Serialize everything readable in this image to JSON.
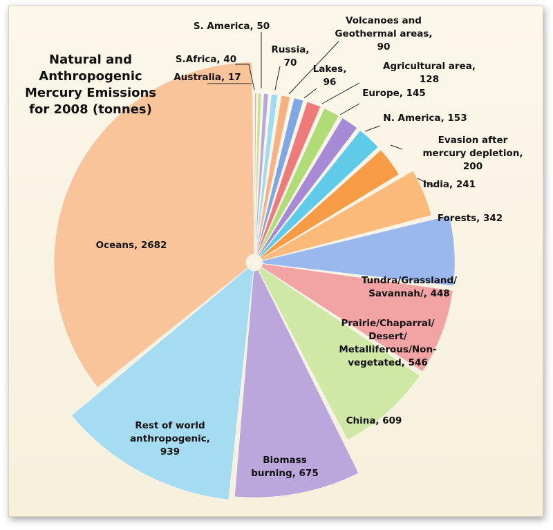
{
  "chart_data": {
    "type": "pie",
    "title": [
      "Natural and",
      "Anthropogenic",
      "Mercury Emissions",
      "for 2008 (tonnes)"
    ],
    "slices": [
      {
        "label": [
          "Australia, 17"
        ],
        "value": 17,
        "color": "#f0a8a0"
      },
      {
        "label": [
          "S.Africa, 40"
        ],
        "value": 40,
        "color": "#c8e49a"
      },
      {
        "label": [
          "S. America, 50"
        ],
        "value": 50,
        "color": "#b9a6dc"
      },
      {
        "label": [
          "Russia,",
          "70"
        ],
        "value": 70,
        "color": "#9edcf0"
      },
      {
        "label": [
          "Volcanoes and",
          "Geothermal areas,",
          "90"
        ],
        "value": 90,
        "color": "#f7b080"
      },
      {
        "label": [
          "Lakes,",
          "96"
        ],
        "value": 96,
        "color": "#7fa7e6"
      },
      {
        "label": [
          "Agricultural area,",
          "128"
        ],
        "value": 128,
        "color": "#ee7a7a"
      },
      {
        "label": [
          "Europe, 145"
        ],
        "value": 145,
        "color": "#b0dc78"
      },
      {
        "label": [
          "N. America, 153"
        ],
        "value": 153,
        "color": "#a68ad6"
      },
      {
        "label": [
          "Evasion after",
          "mercury depletion,",
          "200"
        ],
        "value": 200,
        "color": "#5fcbe8"
      },
      {
        "label": [
          "India, 241"
        ],
        "value": 241,
        "color": "#f79b45"
      },
      {
        "label": [
          "Forests, 342"
        ],
        "value": 342,
        "color": "#fbb97a"
      },
      {
        "label": [
          "Tundra/Grassland/",
          "Savannah/, 448"
        ],
        "value": 448,
        "color": "#9bb8ec"
      },
      {
        "label": [
          "Prairie/Chaparral/",
          "Desert/",
          "Metalliferous/Non-",
          "vegetated, 546"
        ],
        "value": 546,
        "color": "#f2a4a4"
      },
      {
        "label": [
          "China, 609"
        ],
        "value": 609,
        "color": "#cfe8a5"
      },
      {
        "label": [
          "Biomass",
          "burning, 675"
        ],
        "value": 675,
        "color": "#bba7dc"
      },
      {
        "label": [
          "Rest of world",
          "anthropogenic,",
          "939"
        ],
        "value": 939,
        "color": "#a6dcf2"
      },
      {
        "label": [
          "Oceans, 2682"
        ],
        "value": 2682,
        "color": "#f9c49a"
      }
    ]
  }
}
